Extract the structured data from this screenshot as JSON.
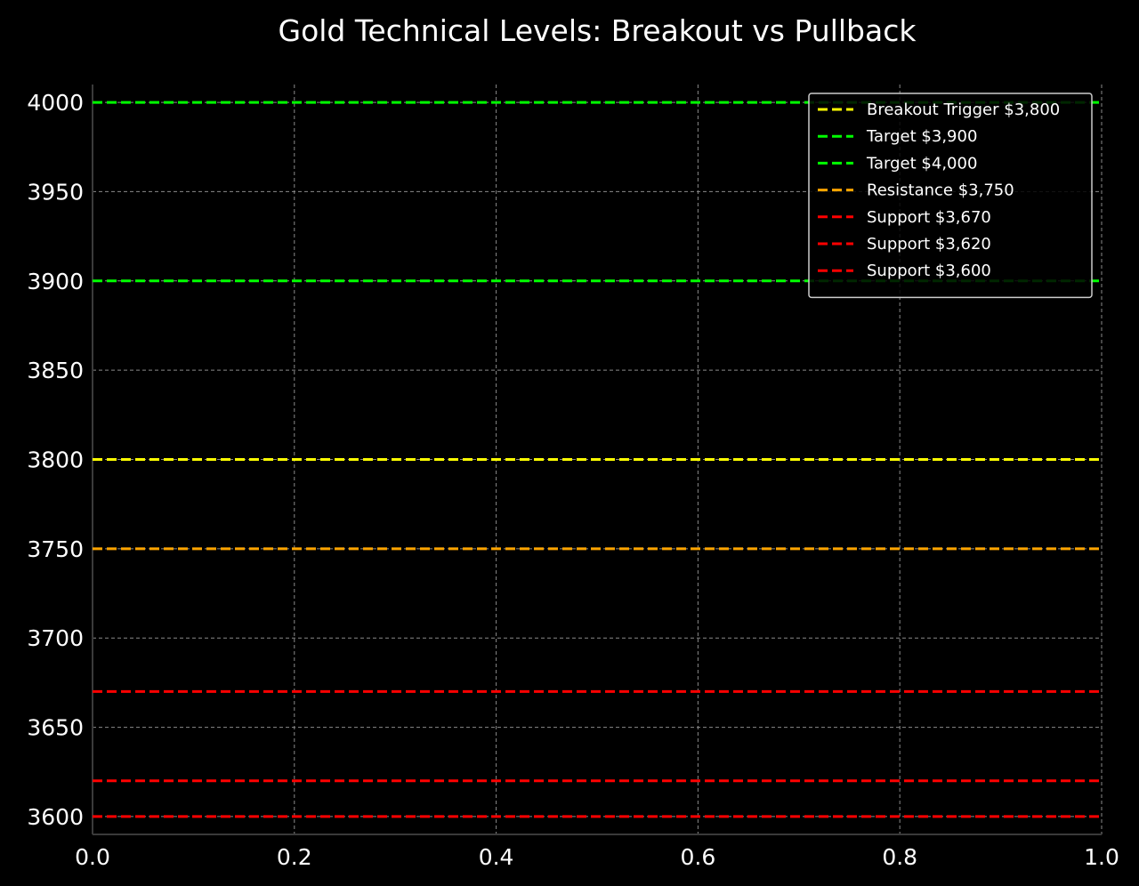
{
  "chart_data": {
    "type": "line",
    "title": "Gold Technical Levels: Breakout vs Pullback",
    "xlabel": "",
    "ylabel": "",
    "xlim": [
      0.0,
      1.0
    ],
    "ylim": [
      3590,
      4010
    ],
    "x_ticks": [
      "0.0",
      "0.2",
      "0.4",
      "0.6",
      "0.8",
      "1.0"
    ],
    "x_tick_values": [
      0.0,
      0.2,
      0.4,
      0.6,
      0.8,
      1.0
    ],
    "y_ticks": [
      "3600",
      "3650",
      "3700",
      "3750",
      "3800",
      "3850",
      "3900",
      "3950",
      "4000"
    ],
    "y_tick_values": [
      3600,
      3650,
      3700,
      3750,
      3800,
      3850,
      3900,
      3950,
      4000
    ],
    "grid": true,
    "legend_position": "top-right",
    "series": [
      {
        "name": "Breakout Trigger $3,800",
        "y": 3800,
        "color": "#ffff00",
        "style": "dashed"
      },
      {
        "name": "Target $3,900",
        "y": 3900,
        "color": "#00ff00",
        "style": "dashed"
      },
      {
        "name": "Target $4,000",
        "y": 4000,
        "color": "#00ff00",
        "style": "dashed"
      },
      {
        "name": "Resistance $3,750",
        "y": 3750,
        "color": "#ffa500",
        "style": "dashed"
      },
      {
        "name": "Support $3,670",
        "y": 3670,
        "color": "#ff0000",
        "style": "dashed"
      },
      {
        "name": "Support $3,620",
        "y": 3620,
        "color": "#ff0000",
        "style": "dashed"
      },
      {
        "name": "Support $3,600",
        "y": 3600,
        "color": "#ff0000",
        "style": "dashed"
      }
    ]
  }
}
